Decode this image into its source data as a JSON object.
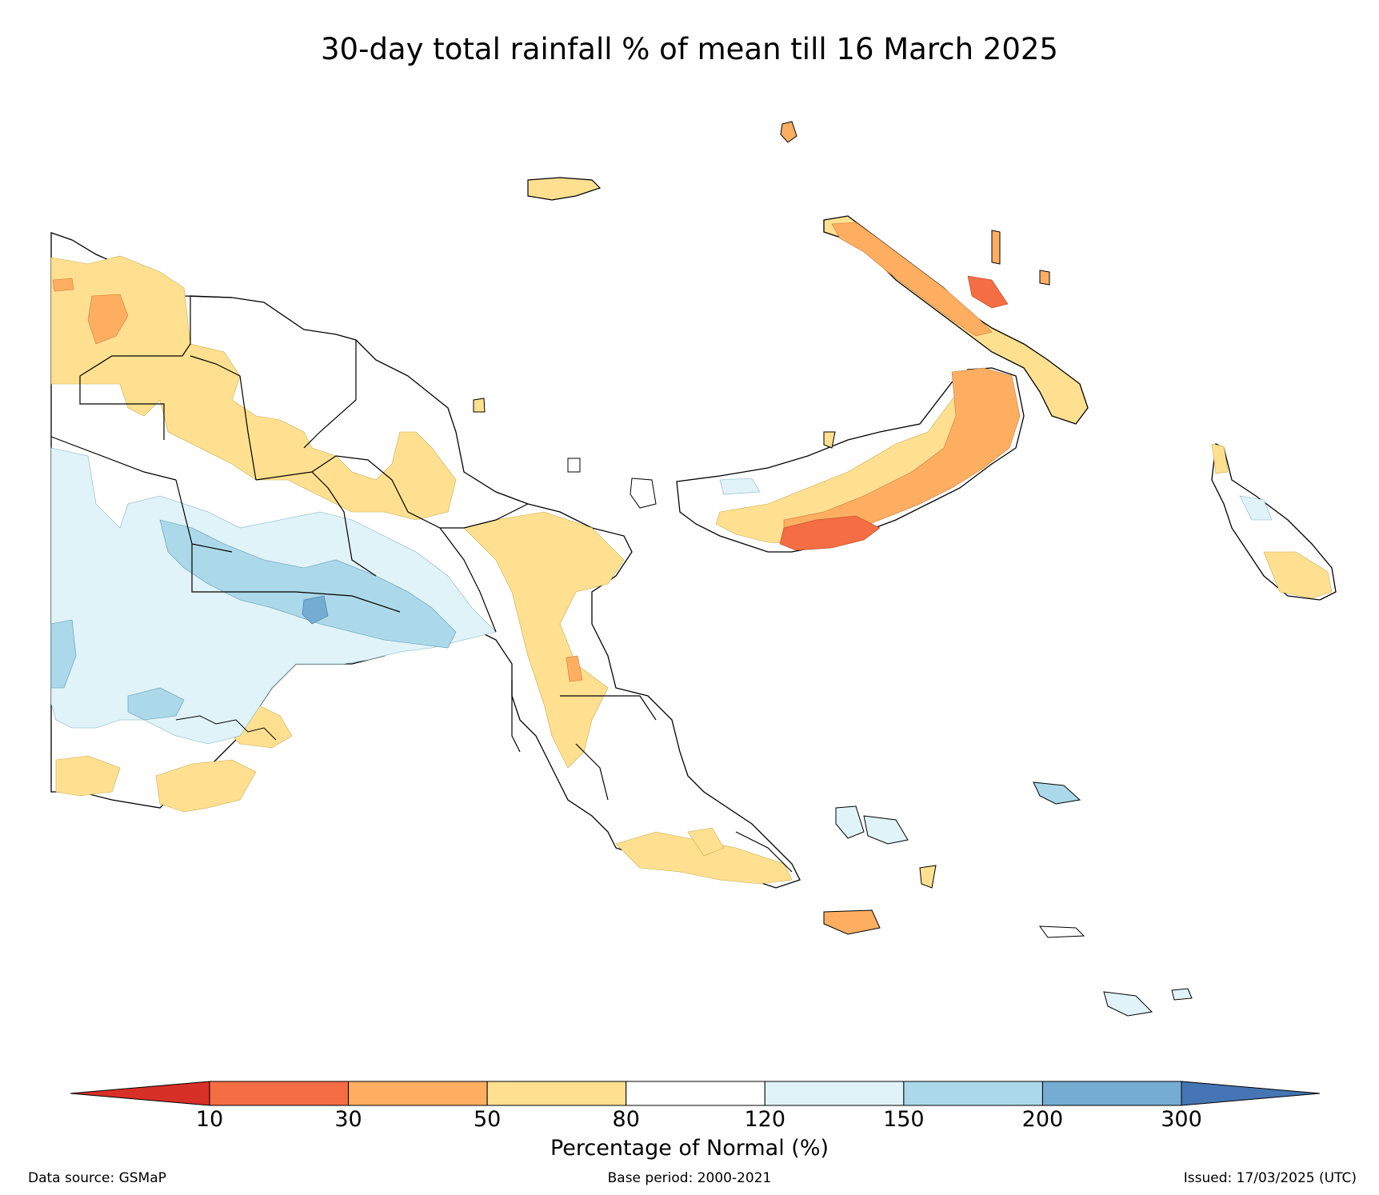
{
  "title": "30-day total rainfall % of mean till 16 March 2025",
  "colorbar": {
    "title": "Percentage of Normal (%)",
    "ticks": [
      "10",
      "30",
      "50",
      "80",
      "120",
      "150",
      "200",
      "300"
    ],
    "under_color": "#d73027",
    "over_color": "#4575b4",
    "bins": [
      {
        "range": "10-30",
        "color": "#f46d43"
      },
      {
        "range": "30-50",
        "color": "#fdae61"
      },
      {
        "range": "50-80",
        "color": "#fee090"
      },
      {
        "range": "80-120",
        "color": "#ffffff"
      },
      {
        "range": "120-150",
        "color": "#e0f3f8"
      },
      {
        "range": "150-200",
        "color": "#abd9e9"
      },
      {
        "range": "200-300",
        "color": "#74add1"
      }
    ]
  },
  "footer": {
    "source": "Data source: GSMaP",
    "base_period": "Base period: 2000-2021",
    "issued": "Issued: 17/03/2025 (UTC)"
  },
  "map": {
    "region": "Papua New Guinea",
    "category_colors": {
      "10-30": "#f46d43",
      "30-50": "#fdae61",
      "50-80": "#fee090",
      "80-120": "#ffffff",
      "120-150": "#e0f3f8",
      "150-200": "#abd9e9",
      "200-300": "#74add1"
    }
  }
}
